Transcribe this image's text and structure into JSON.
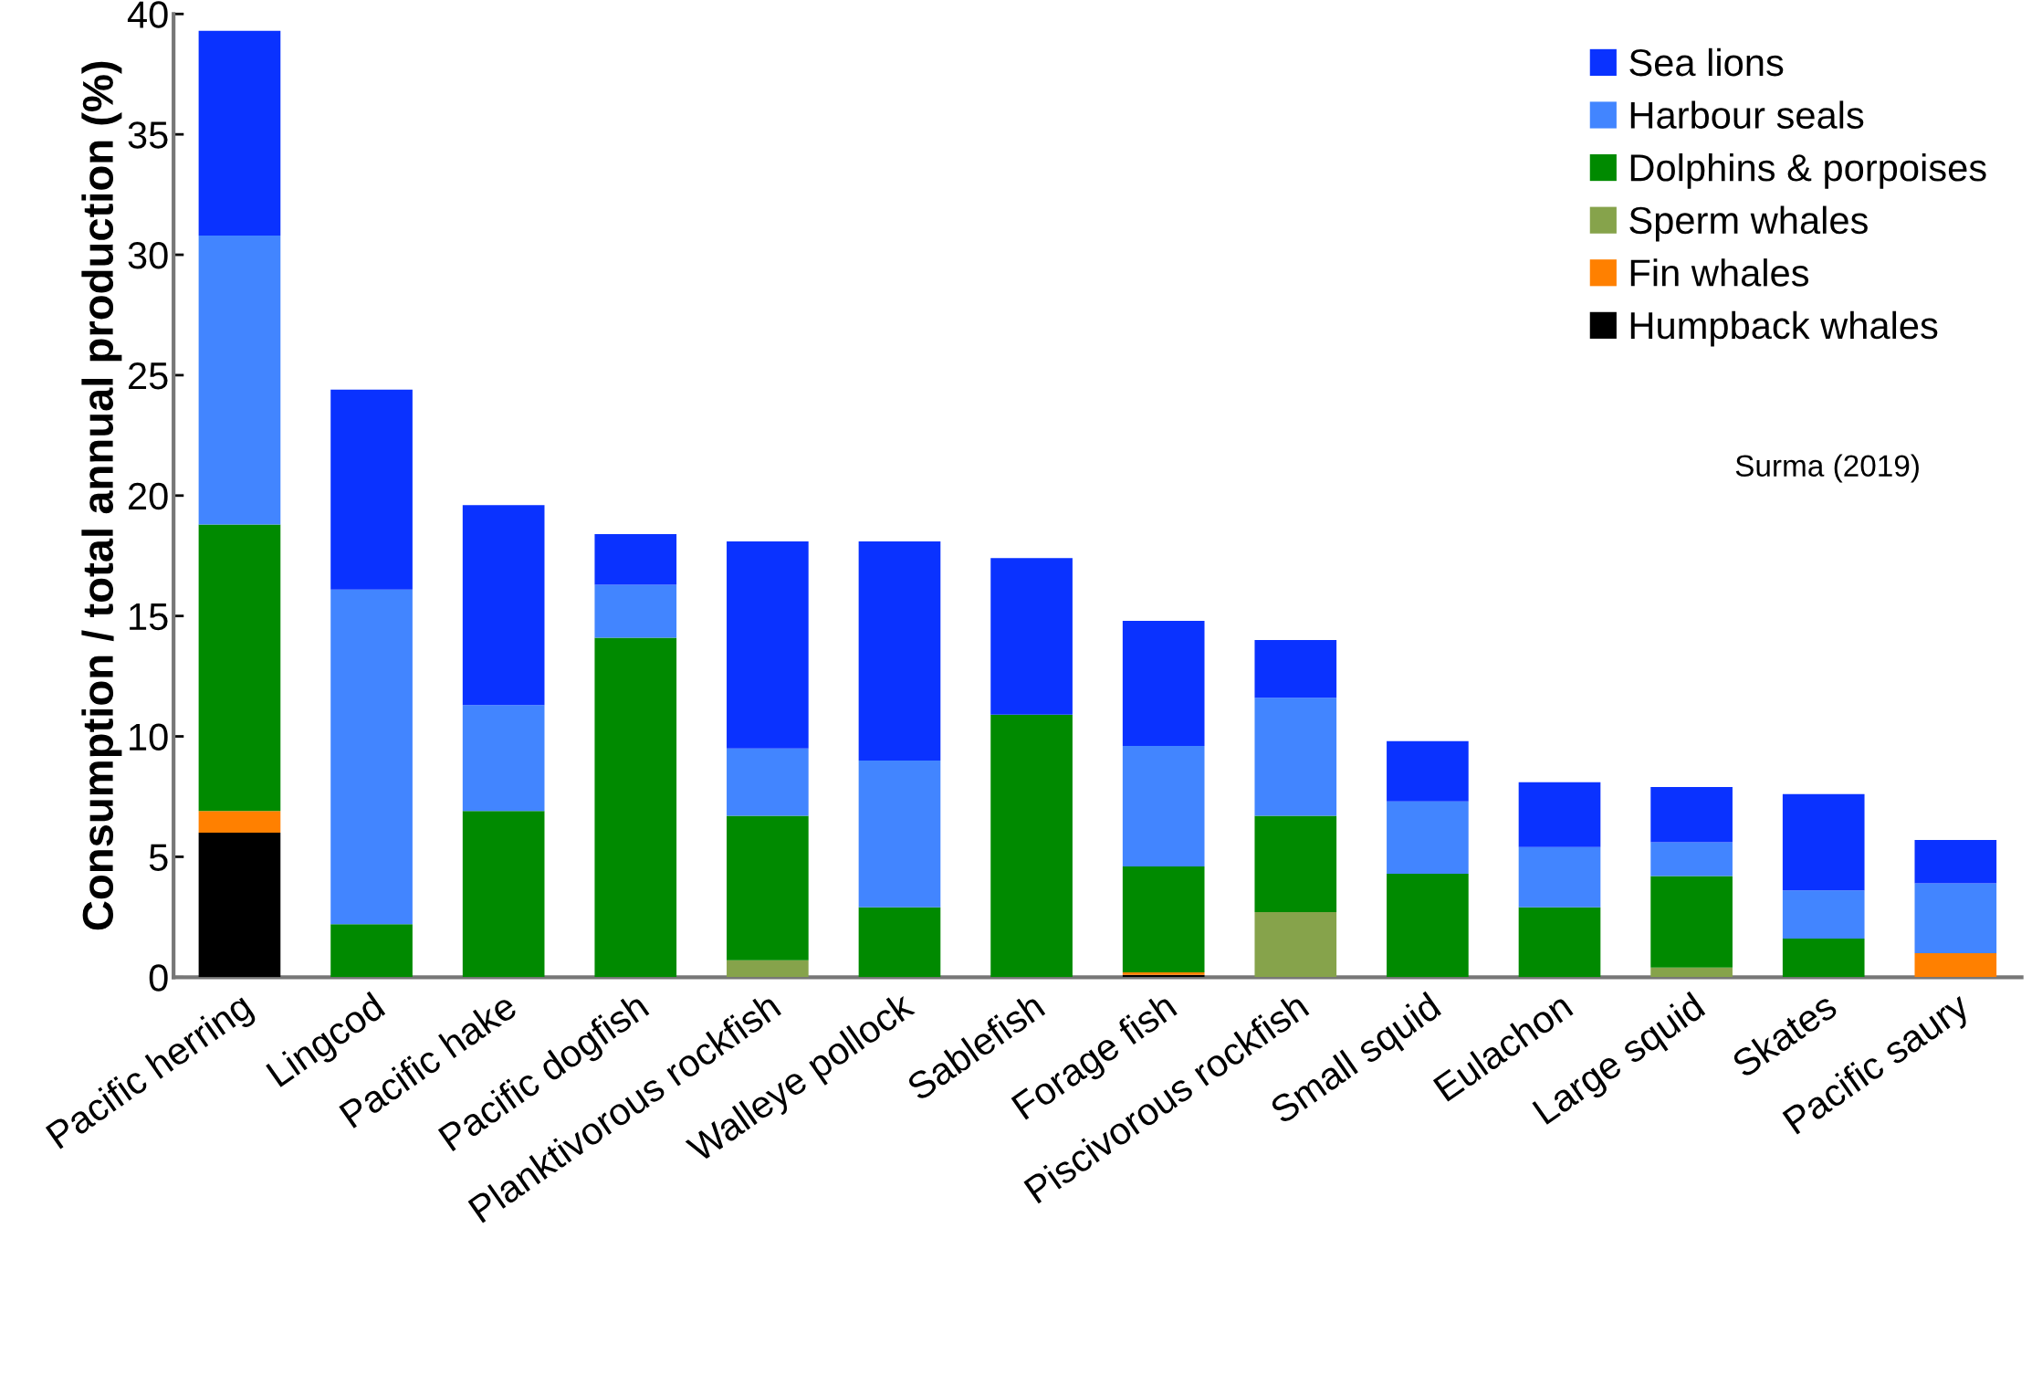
{
  "chart_data": {
    "type": "bar",
    "stacked": true,
    "ylabel": "Consumption / total annual production (%)",
    "categories": [
      "Pacific herring",
      "Lingcod",
      "Pacific hake",
      "Pacific dogfish",
      "Planktivorous rockfish",
      "Walleye pollock",
      "Sablefish",
      "Forage fish",
      "Piscivorous rockfish",
      "Small squid",
      "Eulachon",
      "Large squid",
      "Skates",
      "Pacific saury"
    ],
    "series": [
      {
        "name": "Humpback whales",
        "color": "#000000",
        "values": [
          6.0,
          0,
          0,
          0,
          0,
          0,
          0,
          0.1,
          0,
          0,
          0,
          0,
          0,
          0
        ]
      },
      {
        "name": "Fin whales",
        "color": "#ff8000",
        "values": [
          0.9,
          0,
          0,
          0,
          0,
          0,
          0,
          0.1,
          0,
          0,
          0,
          0,
          0,
          1.0
        ]
      },
      {
        "name": "Sperm whales",
        "color": "#86a34b",
        "values": [
          0,
          0,
          0,
          0,
          0.7,
          0,
          0,
          0,
          2.7,
          0,
          0,
          0.4,
          0,
          0
        ]
      },
      {
        "name": "Dolphins & porpoises",
        "color": "#008a00",
        "values": [
          11.9,
          2.2,
          6.9,
          14.1,
          6.0,
          2.9,
          10.9,
          4.4,
          4.0,
          4.3,
          2.9,
          3.8,
          1.6,
          0
        ]
      },
      {
        "name": "Harbour seals",
        "color": "#4285ff",
        "values": [
          12.0,
          13.9,
          4.4,
          2.2,
          2.8,
          6.1,
          0,
          5.0,
          4.9,
          3.0,
          2.5,
          1.4,
          2.0,
          2.9
        ]
      },
      {
        "name": "Sea lions",
        "color": "#0a32ff",
        "values": [
          8.5,
          8.3,
          8.3,
          2.1,
          8.6,
          9.1,
          6.5,
          5.2,
          2.4,
          2.5,
          2.7,
          2.3,
          4.0,
          1.8
        ]
      }
    ],
    "ylim": [
      0,
      40
    ],
    "yticks": [
      0,
      5,
      10,
      15,
      20,
      25,
      30,
      35,
      40
    ],
    "grid": false,
    "legend": "top right",
    "annotations": [
      "Surma (2019)"
    ]
  }
}
